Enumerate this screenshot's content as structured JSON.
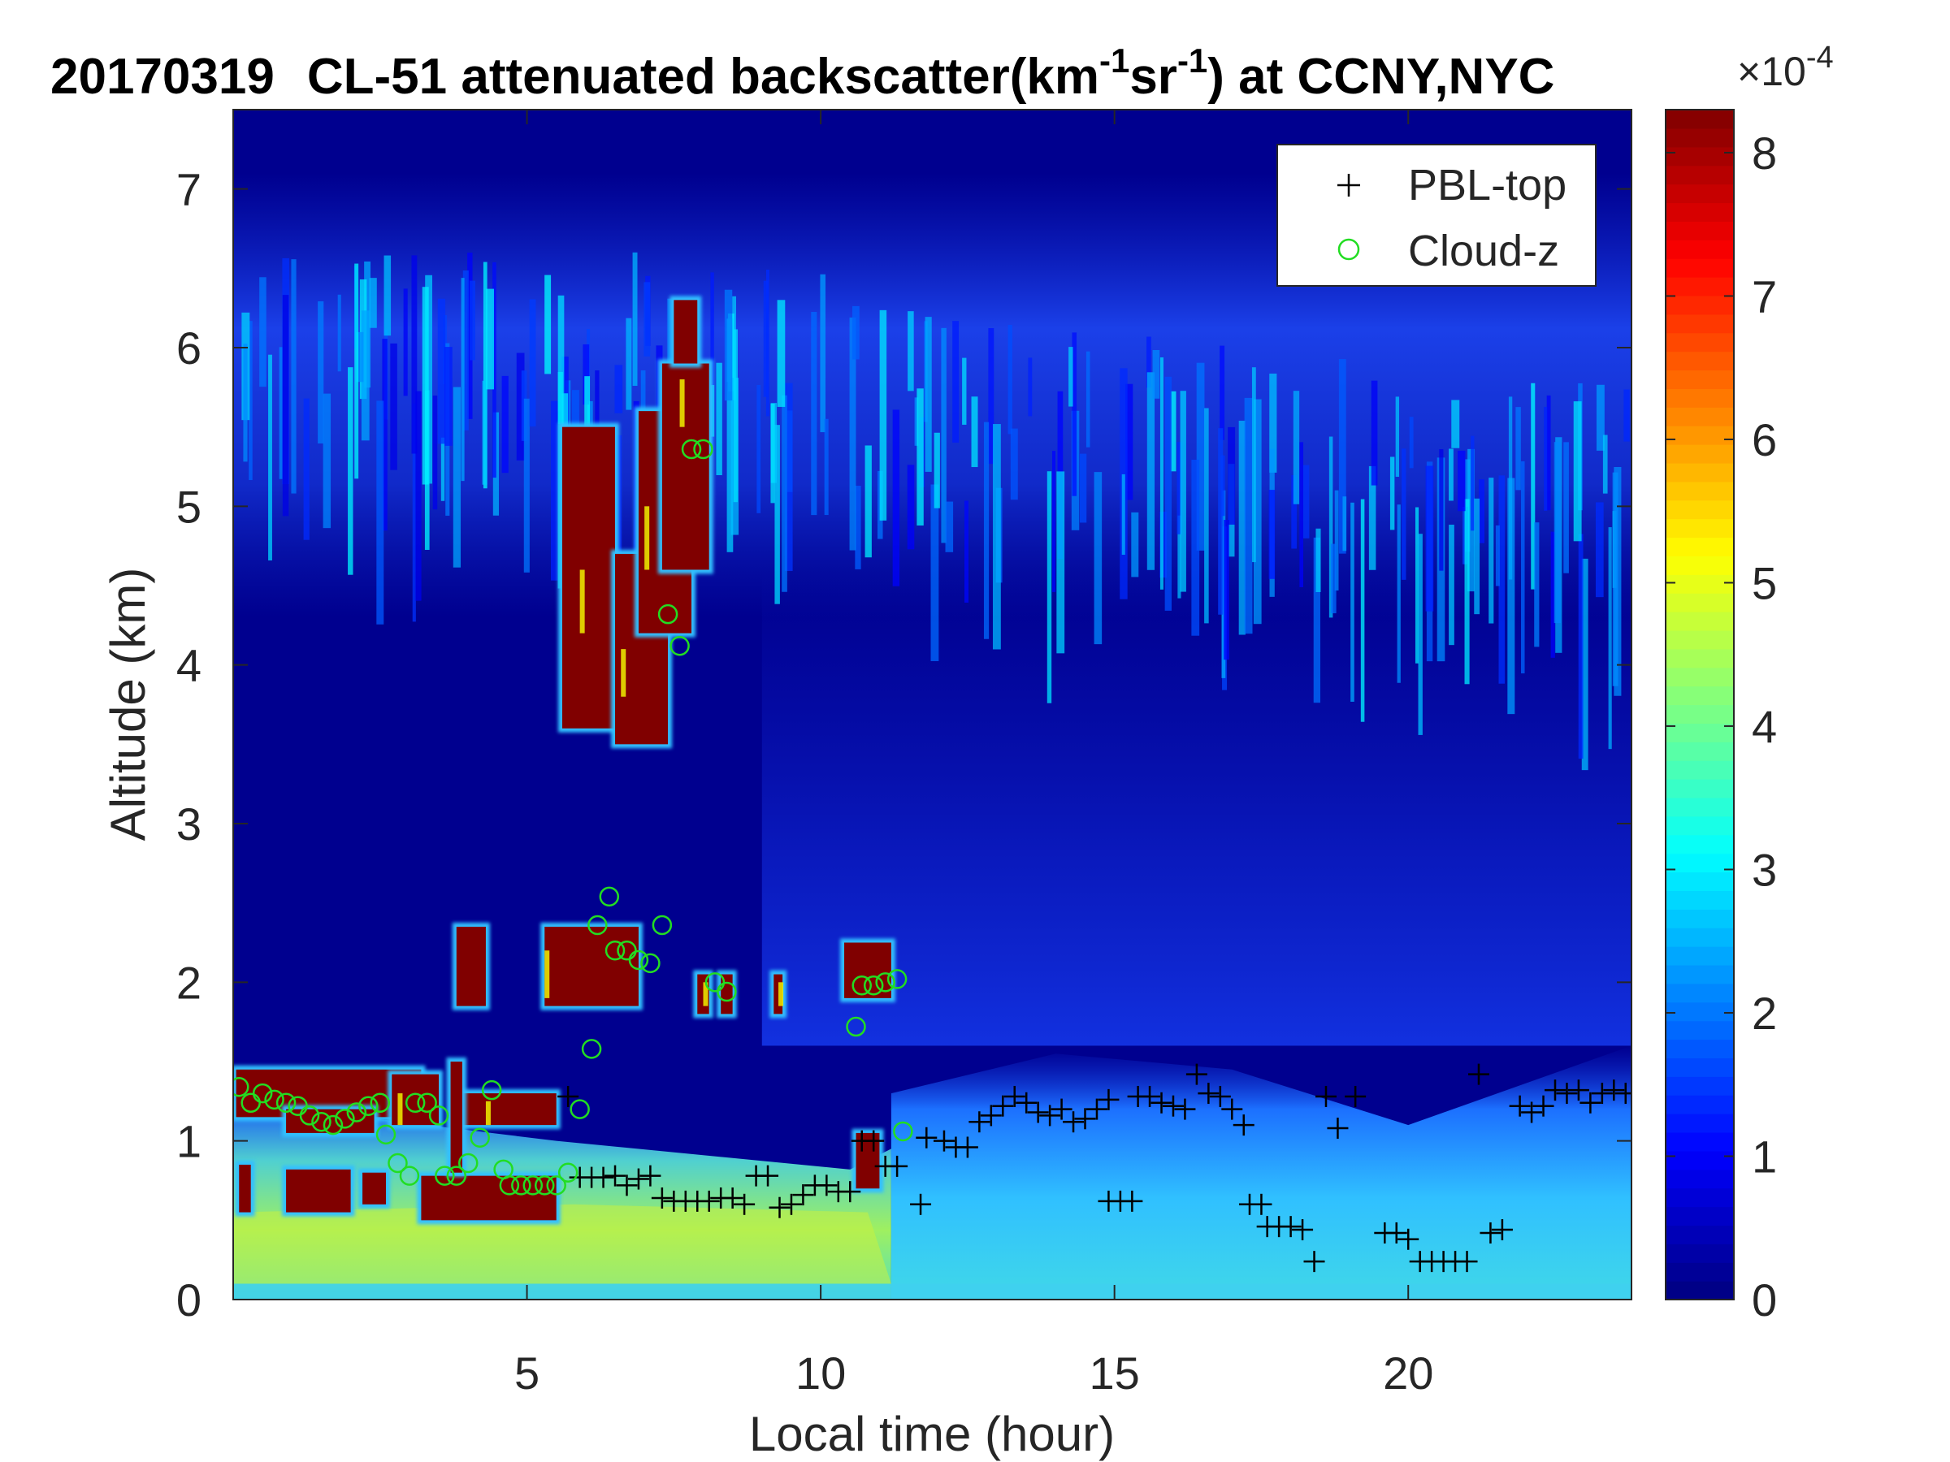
{
  "chart_data": {
    "type": "heatmap",
    "title": {
      "date": "20170319",
      "main": "CL-51 attenuated backscatter(km",
      "sup1": "-1",
      "mid": "sr",
      "sup2": "-1",
      "tail": ") at CCNY,NYC"
    },
    "xlabel": "Local time (hour)",
    "ylabel": "Altitude (km)",
    "xlim": [
      0,
      23.8
    ],
    "ylim": [
      0,
      7.5
    ],
    "xticks": [
      5,
      10,
      15,
      20
    ],
    "yticks": [
      0,
      1,
      2,
      3,
      4,
      5,
      6,
      7
    ],
    "colormap": "jet",
    "colorbar": {
      "min": 0,
      "max": 8.3,
      "ticks": [
        0,
        1,
        2,
        3,
        4,
        5,
        6,
        7,
        8
      ],
      "exponent": "×10",
      "exponent_sup": "-4"
    },
    "colors": {
      "background": "#00008f",
      "cloud_core": "#800000",
      "pbl_marker": "#000000",
      "cloud_marker": "#22dd22"
    },
    "legend": {
      "position": "top-right",
      "entries": [
        "PBL-top",
        "Cloud-z"
      ]
    },
    "series": [
      {
        "name": "PBL-top",
        "marker": "plus",
        "points": [
          [
            5.7,
            1.28
          ],
          [
            5.9,
            0.77
          ],
          [
            6.1,
            0.77
          ],
          [
            6.3,
            0.77
          ],
          [
            6.5,
            0.78
          ],
          [
            6.7,
            0.72
          ],
          [
            6.9,
            0.76
          ],
          [
            7.1,
            0.78
          ],
          [
            7.3,
            0.64
          ],
          [
            7.5,
            0.62
          ],
          [
            7.7,
            0.62
          ],
          [
            7.9,
            0.62
          ],
          [
            8.1,
            0.62
          ],
          [
            8.3,
            0.64
          ],
          [
            8.5,
            0.64
          ],
          [
            8.7,
            0.6
          ],
          [
            8.9,
            0.78
          ],
          [
            9.1,
            0.78
          ],
          [
            9.3,
            0.58
          ],
          [
            9.5,
            0.6
          ],
          [
            9.7,
            0.66
          ],
          [
            9.9,
            0.72
          ],
          [
            10.1,
            0.72
          ],
          [
            10.3,
            0.68
          ],
          [
            10.5,
            0.68
          ],
          [
            10.7,
            1.0
          ],
          [
            10.9,
            1.0
          ],
          [
            11.1,
            0.84
          ],
          [
            11.3,
            0.84
          ],
          [
            11.7,
            0.6
          ],
          [
            11.8,
            1.02
          ],
          [
            12.1,
            1.0
          ],
          [
            12.3,
            0.96
          ],
          [
            12.5,
            0.96
          ],
          [
            12.7,
            1.12
          ],
          [
            12.9,
            1.16
          ],
          [
            13.1,
            1.22
          ],
          [
            13.3,
            1.28
          ],
          [
            13.5,
            1.24
          ],
          [
            13.7,
            1.18
          ],
          [
            13.9,
            1.16
          ],
          [
            14.1,
            1.2
          ],
          [
            14.3,
            1.12
          ],
          [
            14.5,
            1.14
          ],
          [
            14.7,
            1.2
          ],
          [
            14.9,
            1.26
          ],
          [
            14.9,
            0.62
          ],
          [
            15.1,
            0.62
          ],
          [
            15.3,
            0.62
          ],
          [
            15.4,
            1.28
          ],
          [
            15.6,
            1.28
          ],
          [
            15.8,
            1.24
          ],
          [
            16.0,
            1.22
          ],
          [
            16.2,
            1.2
          ],
          [
            16.4,
            1.42
          ],
          [
            16.6,
            1.3
          ],
          [
            16.8,
            1.28
          ],
          [
            17.0,
            1.2
          ],
          [
            17.2,
            1.1
          ],
          [
            17.3,
            0.6
          ],
          [
            17.5,
            0.6
          ],
          [
            17.6,
            0.46
          ],
          [
            17.8,
            0.46
          ],
          [
            18.0,
            0.46
          ],
          [
            18.2,
            0.44
          ],
          [
            18.4,
            0.24
          ],
          [
            18.6,
            1.28
          ],
          [
            18.8,
            1.08
          ],
          [
            19.1,
            1.28
          ],
          [
            19.6,
            0.42
          ],
          [
            19.8,
            0.42
          ],
          [
            20.0,
            0.38
          ],
          [
            20.2,
            0.24
          ],
          [
            20.4,
            0.24
          ],
          [
            20.6,
            0.24
          ],
          [
            20.8,
            0.24
          ],
          [
            21.0,
            0.24
          ],
          [
            21.2,
            1.42
          ],
          [
            21.4,
            0.42
          ],
          [
            21.6,
            0.44
          ],
          [
            21.9,
            1.22
          ],
          [
            22.1,
            1.18
          ],
          [
            22.3,
            1.22
          ],
          [
            22.5,
            1.32
          ],
          [
            22.7,
            1.3
          ],
          [
            22.9,
            1.32
          ],
          [
            23.1,
            1.24
          ],
          [
            23.3,
            1.3
          ],
          [
            23.5,
            1.32
          ],
          [
            23.7,
            1.3
          ]
        ]
      },
      {
        "name": "Cloud-z",
        "marker": "circle",
        "points": [
          [
            0.1,
            1.34
          ],
          [
            0.3,
            1.24
          ],
          [
            0.5,
            1.3
          ],
          [
            0.7,
            1.26
          ],
          [
            0.9,
            1.24
          ],
          [
            1.1,
            1.22
          ],
          [
            1.3,
            1.16
          ],
          [
            1.5,
            1.12
          ],
          [
            1.7,
            1.1
          ],
          [
            1.9,
            1.14
          ],
          [
            2.1,
            1.18
          ],
          [
            2.3,
            1.22
          ],
          [
            2.5,
            1.24
          ],
          [
            2.6,
            1.04
          ],
          [
            2.8,
            0.86
          ],
          [
            3.0,
            0.78
          ],
          [
            3.1,
            1.24
          ],
          [
            3.3,
            1.24
          ],
          [
            3.5,
            1.16
          ],
          [
            3.6,
            0.78
          ],
          [
            3.8,
            0.78
          ],
          [
            4.0,
            0.86
          ],
          [
            4.2,
            1.02
          ],
          [
            4.4,
            1.32
          ],
          [
            4.6,
            0.82
          ],
          [
            4.7,
            0.72
          ],
          [
            4.9,
            0.72
          ],
          [
            5.1,
            0.72
          ],
          [
            5.3,
            0.72
          ],
          [
            5.5,
            0.72
          ],
          [
            5.7,
            0.8
          ],
          [
            5.9,
            1.2
          ],
          [
            6.1,
            1.58
          ],
          [
            6.2,
            2.36
          ],
          [
            6.4,
            2.54
          ],
          [
            6.5,
            2.2
          ],
          [
            6.7,
            2.2
          ],
          [
            6.9,
            2.14
          ],
          [
            7.1,
            2.12
          ],
          [
            7.3,
            2.36
          ],
          [
            7.4,
            4.32
          ],
          [
            7.6,
            4.12
          ],
          [
            7.8,
            5.36
          ],
          [
            8.0,
            5.36
          ],
          [
            8.2,
            2.0
          ],
          [
            8.4,
            1.94
          ],
          [
            10.6,
            1.72
          ],
          [
            10.7,
            1.98
          ],
          [
            10.9,
            1.98
          ],
          [
            11.1,
            2.0
          ],
          [
            11.3,
            2.02
          ],
          [
            11.4,
            1.06
          ]
        ]
      }
    ]
  }
}
